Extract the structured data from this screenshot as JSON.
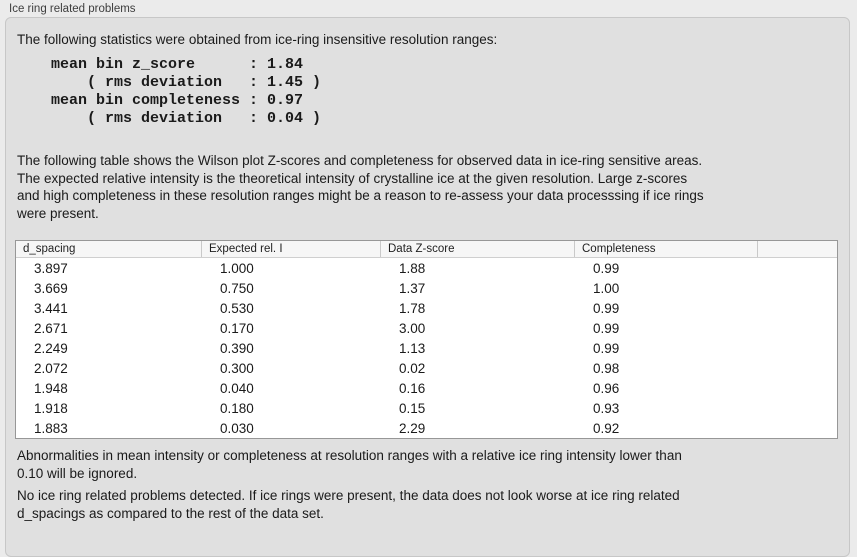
{
  "group_title": "Ice ring related problems",
  "intro_text": "The following statistics were obtained from ice-ring insensitive resolution ranges:",
  "stats_block": "mean bin z_score      : 1.84\n    ( rms deviation   : 1.45 )\nmean bin completeness : 0.97\n    ( rms deviation   : 0.04 )",
  "table_description": "The following table shows the Wilson plot Z-scores and completeness for observed data in ice-ring sensitive areas.\nThe expected relative intensity is the theoretical intensity of crystalline ice at the given resolution. Large z-scores\nand high completeness in these resolution ranges might be a reason to re-assess your data processsing if ice rings\nwere present.",
  "table": {
    "columns": [
      "d_spacing",
      "Expected rel. I",
      "Data Z-score",
      "Completeness",
      ""
    ],
    "rows": [
      [
        "3.897",
        "1.000",
        "1.88",
        "0.99"
      ],
      [
        "3.669",
        "0.750",
        "1.37",
        "1.00"
      ],
      [
        "3.441",
        "0.530",
        "1.78",
        "0.99"
      ],
      [
        "2.671",
        "0.170",
        "3.00",
        "0.99"
      ],
      [
        "2.249",
        "0.390",
        "1.13",
        "0.99"
      ],
      [
        "2.072",
        "0.300",
        "0.02",
        "0.98"
      ],
      [
        "1.948",
        "0.040",
        "0.16",
        "0.96"
      ],
      [
        "1.918",
        "0.180",
        "0.15",
        "0.93"
      ],
      [
        "1.883",
        "0.030",
        "2.29",
        "0.92"
      ]
    ]
  },
  "ignore_note": "Abnormalities in mean intensity or completeness at resolution ranges with a relative ice ring intensity lower than\n0.10 will be ignored.",
  "conclusion": "No ice ring related problems detected. If ice rings were present, the data does not look worse at ice ring related\nd_spacings as compared to the rest of the data set.",
  "colors": {
    "page_bg": "#ebebeb",
    "panel_bg": "#e0e0e0",
    "panel_border": "#c7c7c7",
    "table_border": "#979797",
    "header_bg": "#f6f6f6",
    "text": "#1a1a1a"
  }
}
